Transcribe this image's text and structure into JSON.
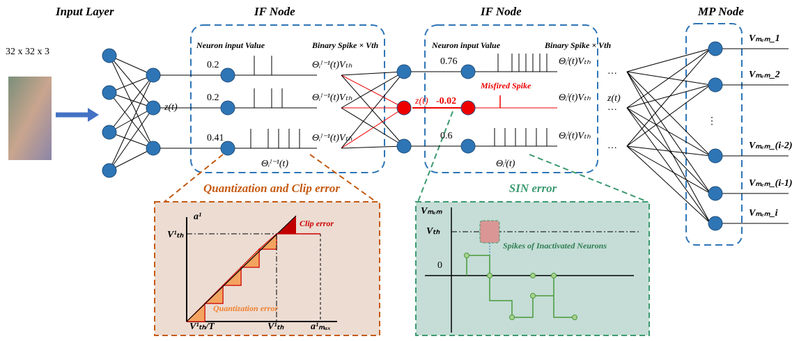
{
  "layers": {
    "input": "Input Layer",
    "if_1": "IF Node",
    "if_2": "IF Node",
    "mp": "MP Node"
  },
  "input_size": "32 x 32 x 3",
  "if_1": {
    "input_header": "Neuron input Value",
    "output_header": "Binary Spike × Vth",
    "inputs": [
      0.2,
      0.2,
      0.41
    ],
    "z": "z(t)",
    "outputs": [
      "Θᵢˡ⁻¹(t)Vₜₕ",
      "Θᵢˡ⁻¹(t)Vₜₕ",
      "Θᵢˡ⁻¹(t)Vₜₕ"
    ],
    "theta": "Θᵢˡ⁻¹(t)"
  },
  "if_2": {
    "input_header": "Neuron input Value",
    "output_header": "Binary Spike × Vth",
    "inputs": [
      0.76,
      -0.02,
      0.6
    ],
    "z": "z(t)",
    "misfired": "Misfired Spike",
    "outputs": [
      "Θᵢˡ(t)Vₜₕ",
      "Θᵢˡ(t)Vₜₕ",
      "Θᵢˡ(t)Vₜₕ"
    ],
    "theta": "Θᵢˡ(t)",
    "dots": [
      "…",
      "…",
      "…"
    ]
  },
  "mp": {
    "z": "z(t)",
    "dots": "⋮",
    "outputs": [
      "Vₘₑₘ_1",
      "Vₘₑₘ_2",
      "Vₘₑₘ_(i-2)",
      "Vₘₑₘ_(i-1)",
      "Vₘₑₘ_i"
    ]
  },
  "quant_panel": {
    "title": "Quantization and Clip error",
    "y_axis": "a¹",
    "x_axis": "a¹ₘₐₓ",
    "vth_y": "V¹ₜₕ",
    "vth_x": "V¹ₜₕ",
    "x_start": "V¹ₜₕ/T",
    "clip": "Clip error",
    "quant": "Quantization error"
  },
  "sin_panel": {
    "title": "SIN error",
    "y_axis": "Vₘₑₘ",
    "vth": "Vₜₕ",
    "zero": "0",
    "note": "Spikes of Inactivated Neurons"
  }
}
